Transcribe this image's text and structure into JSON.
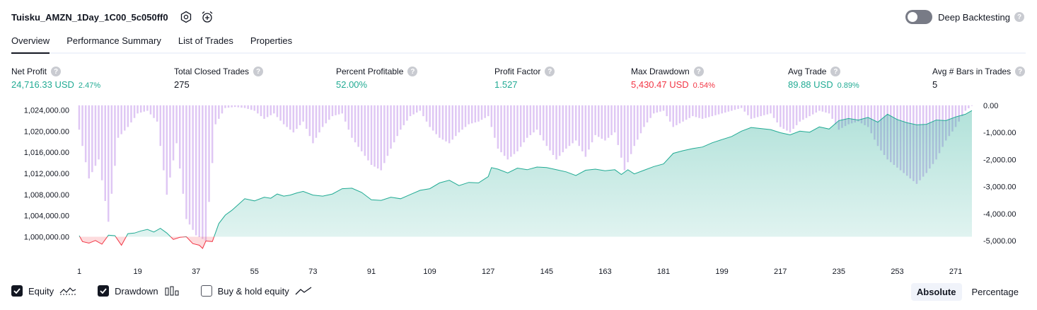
{
  "header": {
    "title": "Tuisku_AMZN_1Day_1C00_5c050ff0",
    "deep_backtesting_label": "Deep Backtesting",
    "deep_backtesting_on": false,
    "help_glyph": "?"
  },
  "tabs": [
    {
      "label": "Overview",
      "active": true
    },
    {
      "label": "Performance Summary",
      "active": false
    },
    {
      "label": "List of Trades",
      "active": false
    },
    {
      "label": "Properties",
      "active": false
    }
  ],
  "metrics": [
    {
      "label": "Net Profit",
      "value": "24,716.33 USD",
      "pct": "2.47%",
      "color": "green"
    },
    {
      "label": "Total Closed Trades",
      "value": "275",
      "pct": "",
      "color": "dark"
    },
    {
      "label": "Percent Profitable",
      "value": "52.00%",
      "pct": "",
      "color": "green"
    },
    {
      "label": "Profit Factor",
      "value": "1.527",
      "pct": "",
      "color": "green"
    },
    {
      "label": "Max Drawdown",
      "value": "5,430.47 USD",
      "pct": "0.54%",
      "color": "red"
    },
    {
      "label": "Avg Trade",
      "value": "89.88 USD",
      "pct": "0.89%",
      "color": "green"
    },
    {
      "label": "Avg # Bars in Trades",
      "value": "5",
      "pct": "",
      "color": "dark"
    }
  ],
  "legend": {
    "equity_label": "Equity",
    "drawdown_label": "Drawdown",
    "buyhold_label": "Buy & hold equity",
    "equity_checked": true,
    "drawdown_checked": true,
    "buyhold_checked": false
  },
  "modes": {
    "absolute": "Absolute",
    "percentage": "Percentage",
    "active": "absolute"
  },
  "colors": {
    "positive": "#22ab94",
    "negative": "#f23645",
    "drawdown_bar": "#d9bdf2",
    "text": "#131722"
  },
  "chart_data": {
    "type": "area",
    "x_ticks": [
      "1",
      "19",
      "37",
      "55",
      "73",
      "91",
      "109",
      "127",
      "145",
      "163",
      "181",
      "199",
      "217",
      "235",
      "253",
      "271"
    ],
    "left_axis": {
      "ticks": [
        "1,024,000.00",
        "1,020,000.00",
        "1,016,000.00",
        "1,012,000.00",
        "1,008,000.00",
        "1,004,000.00",
        "1,000,000.00"
      ],
      "ylim": [
        999000,
        1025000
      ],
      "baseline": 1000000
    },
    "right_axis": {
      "ticks": [
        "0.00",
        "-1,000.00",
        "-2,000.00",
        "-3,000.00",
        "-4,000.00",
        "-5,000.00"
      ],
      "ylim": [
        -5050,
        20
      ]
    },
    "series": [
      {
        "kind": "equity",
        "x": [
          1,
          2,
          4,
          6,
          8,
          10,
          12,
          14,
          16,
          18,
          20,
          22,
          24,
          26,
          28,
          30,
          32,
          34,
          36,
          38,
          39,
          40,
          42,
          44,
          46,
          48,
          50,
          52,
          55,
          58,
          60,
          62,
          64,
          66,
          68,
          70,
          73,
          76,
          79,
          82,
          85,
          88,
          91,
          94,
          97,
          100,
          103,
          106,
          109,
          112,
          115,
          118,
          121,
          124,
          127,
          128,
          130,
          133,
          136,
          139,
          142,
          145,
          148,
          151,
          154,
          157,
          160,
          163,
          166,
          168,
          170,
          172,
          175,
          178,
          181,
          184,
          187,
          190,
          193,
          196,
          199,
          202,
          205,
          208,
          211,
          214,
          217,
          220,
          223,
          226,
          229,
          232,
          235,
          238,
          241,
          244,
          247,
          250,
          253,
          256,
          259,
          262,
          265,
          268,
          271,
          274,
          276
        ],
        "y": [
          1000200,
          999100,
          998800,
          999300,
          998600,
          1000300,
          1000200,
          998400,
          1000600,
          1000700,
          1001100,
          1001400,
          1000900,
          1001600,
          1000700,
          999500,
          999900,
          1000000,
          998700,
          998400,
          997800,
          999200,
          999100,
          1002500,
          1004100,
          1005000,
          1006100,
          1007200,
          1006800,
          1007500,
          1007300,
          1008100,
          1007700,
          1007900,
          1008300,
          1008600,
          1007900,
          1007700,
          1008100,
          1009100,
          1009200,
          1008400,
          1007000,
          1006900,
          1007500,
          1007200,
          1008000,
          1008800,
          1009100,
          1010200,
          1010700,
          1009700,
          1010300,
          1010200,
          1011400,
          1013100,
          1012800,
          1012100,
          1013000,
          1012700,
          1013200,
          1013100,
          1012700,
          1012300,
          1011600,
          1012600,
          1012800,
          1012500,
          1012700,
          1011800,
          1012700,
          1011900,
          1012600,
          1013300,
          1013800,
          1015800,
          1016300,
          1016700,
          1017000,
          1017800,
          1018400,
          1019000,
          1020000,
          1020700,
          1020500,
          1020300,
          1019700,
          1019300,
          1020000,
          1019800,
          1020800,
          1020400,
          1022000,
          1022400,
          1022100,
          1022600,
          1021700,
          1023200,
          1022200,
          1021600,
          1021200,
          1021300,
          1022100,
          1022000,
          1022700,
          1023200,
          1023900
        ]
      },
      {
        "kind": "drawdown",
        "x": [
          1,
          4,
          7,
          10,
          13,
          16,
          19,
          22,
          25,
          28,
          31,
          34,
          37,
          40,
          43,
          46,
          49,
          52,
          55,
          58,
          61,
          64,
          67,
          70,
          73,
          76,
          79,
          82,
          85,
          88,
          91,
          94,
          97,
          100,
          103,
          106,
          109,
          112,
          115,
          118,
          121,
          124,
          127,
          130,
          133,
          136,
          139,
          142,
          145,
          148,
          151,
          154,
          157,
          160,
          163,
          166,
          169,
          172,
          175,
          178,
          181,
          184,
          187,
          190,
          193,
          196,
          199,
          202,
          205,
          208,
          211,
          214,
          217,
          220,
          223,
          226,
          229,
          232,
          235,
          238,
          241,
          244,
          247,
          250,
          253,
          256,
          259,
          262,
          265,
          268,
          271,
          274,
          276
        ],
        "y": [
          -900,
          -2700,
          -2000,
          -4300,
          -1200,
          -800,
          -300,
          -200,
          -600,
          -3300,
          -1400,
          -4200,
          -4800,
          -5000,
          -700,
          -100,
          -60,
          -100,
          -200,
          -500,
          -300,
          -700,
          -1000,
          -600,
          -1400,
          -800,
          -400,
          -300,
          -1200,
          -1700,
          -2200,
          -2400,
          -1600,
          -900,
          -400,
          -200,
          -800,
          -1200,
          -1400,
          -1000,
          -700,
          -600,
          -400,
          -1600,
          -2000,
          -1700,
          -1200,
          -900,
          -1500,
          -2000,
          -1600,
          -1300,
          -1900,
          -1100,
          -1300,
          -1000,
          -2400,
          -1500,
          -800,
          -300,
          -200,
          -800,
          -600,
          -400,
          -500,
          -400,
          -300,
          -200,
          -100,
          -500,
          -400,
          -300,
          -800,
          -1000,
          -600,
          -400,
          -200,
          -300,
          -900,
          -700,
          -600,
          -800,
          -1500,
          -2000,
          -2300,
          -2600,
          -2900,
          -2500,
          -2000,
          -1300,
          -800,
          -200,
          -20
        ]
      }
    ]
  }
}
